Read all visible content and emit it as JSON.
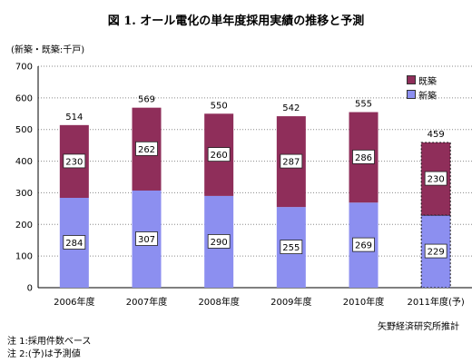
{
  "colors": {
    "existing": "#8f2e5a",
    "new": "#8c8ff0",
    "grid": "#8a8a8a"
  },
  "chart_data": {
    "type": "bar",
    "stacked": true,
    "title": "図 1. オール電化の単年度採用実績の推移と予測",
    "unit_label": "(新築・既築:千戸)",
    "categories": [
      "2006年度",
      "2007年度",
      "2008年度",
      "2009年度",
      "2010年度",
      "2011年度(予)"
    ],
    "series": [
      {
        "name": "新築",
        "values": [
          284,
          307,
          290,
          255,
          269,
          229
        ]
      },
      {
        "name": "既築",
        "values": [
          230,
          262,
          260,
          287,
          286,
          230
        ]
      }
    ],
    "totals": [
      514,
      569,
      550,
      542,
      555,
      459
    ],
    "forecast_index": 5,
    "ylim": [
      0,
      700
    ],
    "yticks": [
      0,
      100,
      200,
      300,
      400,
      500,
      600,
      700
    ],
    "grid": true,
    "legend": {
      "position": "top-right",
      "order": [
        "既築",
        "新築"
      ]
    }
  },
  "source": "矢野経済研究所推計",
  "notes": [
    "注 1:採用件数ベース",
    "注 2:(予)は予測値"
  ]
}
